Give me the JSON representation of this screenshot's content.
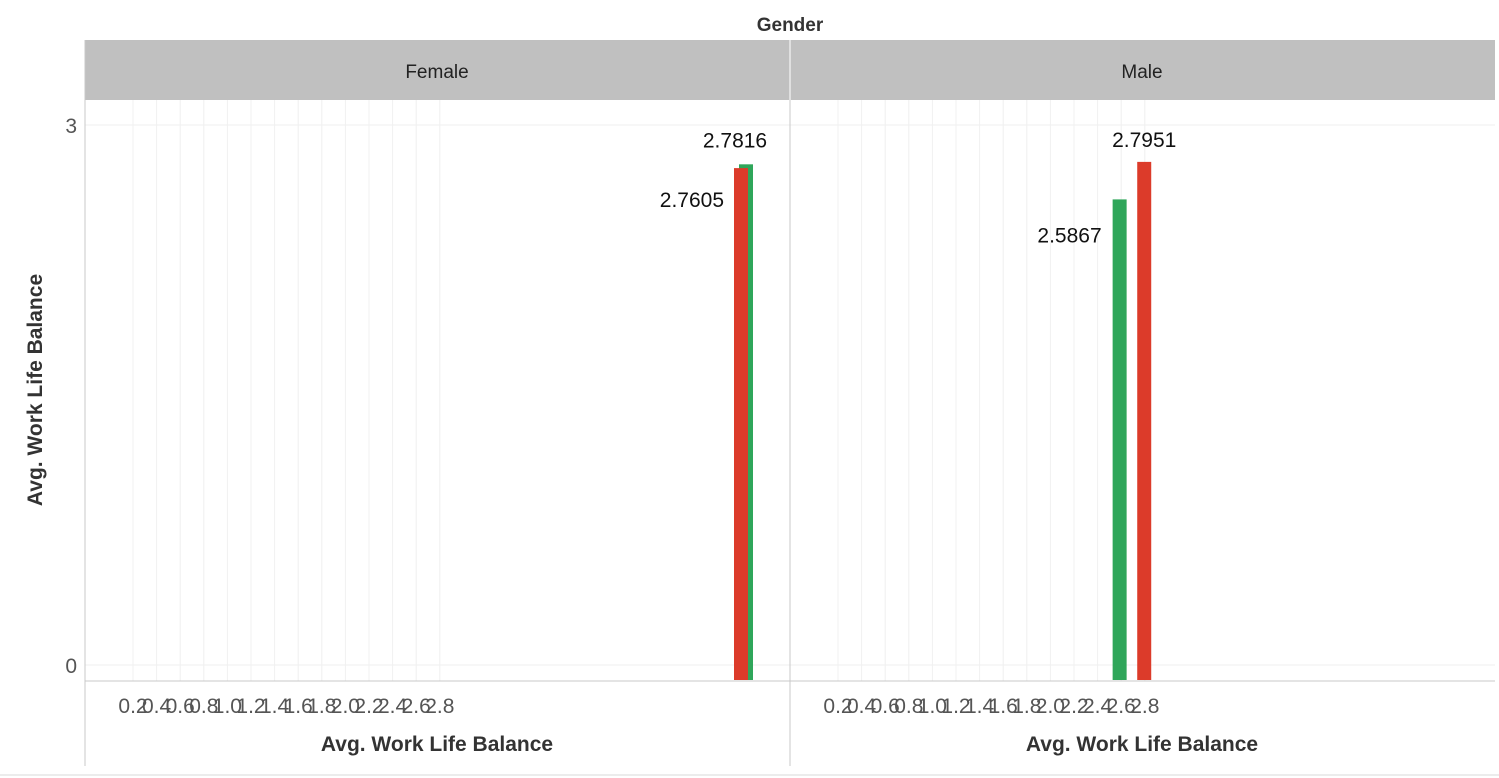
{
  "chart_data": {
    "type": "bar",
    "column_header_title": "Gender",
    "x_label": "Avg. Work Life Balance",
    "y_label": "Avg. Work Life Balance",
    "x_ticks": [
      "0.2",
      "0.4",
      "0.6",
      "0.8",
      "1.0",
      "1.2",
      "1.4",
      "1.6",
      "1.8",
      "2.0",
      "2.2",
      "2.4",
      "2.6",
      "2.8"
    ],
    "y_ticks": [
      "0",
      "3"
    ],
    "y_range": [
      0,
      3
    ],
    "x_range": [
      0.08,
      2.88
    ],
    "grid": true,
    "colors": {
      "green": "#2fa65a",
      "red": "#dc3b2a"
    },
    "panels": [
      {
        "name": "Female",
        "bars": [
          {
            "x": 2.7816,
            "y": 2.7816,
            "color": "green",
            "label": "2.7816"
          },
          {
            "x": 2.7605,
            "y": 2.7605,
            "color": "red",
            "label": "2.7605"
          }
        ]
      },
      {
        "name": "Male",
        "bars": [
          {
            "x": 2.5867,
            "y": 2.5867,
            "color": "green",
            "label": "2.5867"
          },
          {
            "x": 2.7951,
            "y": 2.7951,
            "color": "red",
            "label": "2.7951"
          }
        ]
      }
    ]
  }
}
